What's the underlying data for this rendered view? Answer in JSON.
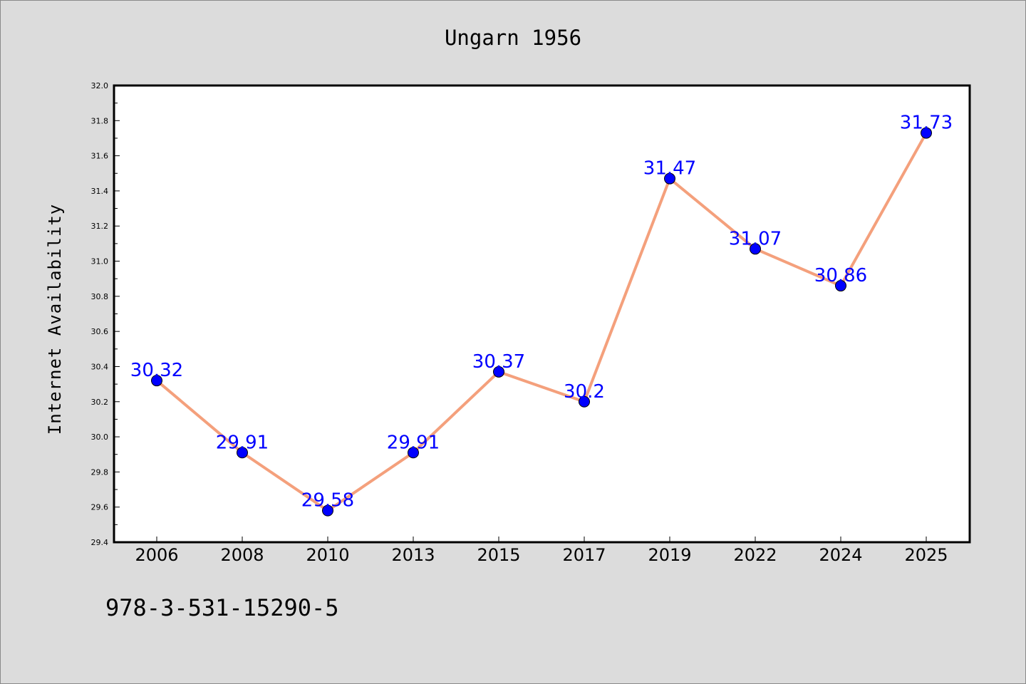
{
  "chart_data": {
    "type": "line",
    "title": "Ungarn 1956",
    "xlabel": "",
    "ylabel": "Internet Availability",
    "categories": [
      "2006",
      "2008",
      "2010",
      "2013",
      "2015",
      "2017",
      "2019",
      "2022",
      "2024",
      "2025"
    ],
    "series": [
      {
        "values": [
          30.32,
          29.91,
          29.58,
          29.91,
          30.37,
          30.2,
          31.47,
          31.07,
          30.86,
          31.73
        ],
        "data_labels": [
          "30.32",
          "29.91",
          "29.58",
          "29.91",
          "30.37",
          "30.2",
          "31.47",
          "31.07",
          "30.86",
          "31.73"
        ],
        "line_color": "#f4a07c",
        "marker_color": "#0000ff"
      }
    ],
    "ylim": [
      29.4,
      32.0
    ],
    "yticks": [
      "29.4",
      "29.6",
      "29.8",
      "30.0",
      "30.2",
      "30.4",
      "30.6",
      "30.8",
      "31.0",
      "31.2",
      "31.4",
      "31.6",
      "31.8",
      "32.0"
    ],
    "grid": false,
    "legend": "none"
  },
  "footer_text": "978-3-531-15290-5",
  "colors": {
    "background": "#dcdcdc",
    "plot_background": "#ffffff",
    "data_label": "#0000ff"
  }
}
